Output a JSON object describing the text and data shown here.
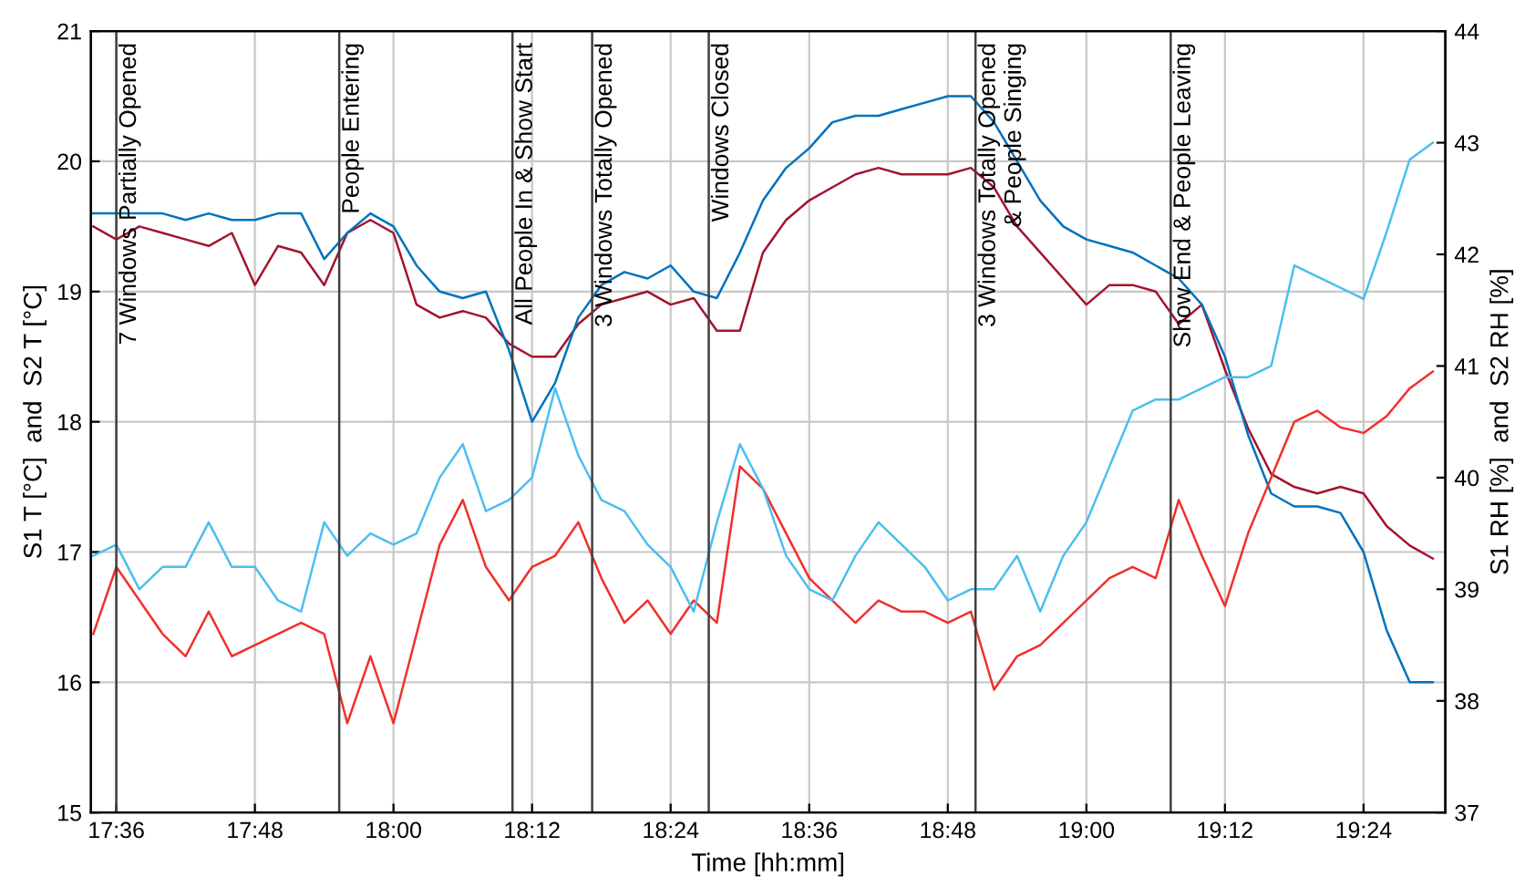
{
  "chart_data": {
    "type": "line",
    "xlabel": "Time [hh:mm]",
    "ylabel": "S1 T [°C]  and  S2 T [°C]",
    "y2label": "S1 RH [%]  and  S2 RH [%]",
    "x": [
      17.5667,
      17.6,
      17.6333,
      17.6667,
      17.7,
      17.7333,
      17.7667,
      17.8,
      17.8333,
      17.8667,
      17.9,
      17.9333,
      17.9667,
      18.0,
      18.0333,
      18.0667,
      18.1,
      18.1333,
      18.1667,
      18.2,
      18.2333,
      18.2667,
      18.3,
      18.3333,
      18.3667,
      18.4,
      18.4333,
      18.4667,
      18.5,
      18.5333,
      18.5667,
      18.6,
      18.6333,
      18.6667,
      18.7,
      18.7333,
      18.7667,
      18.8,
      18.8333,
      18.8667,
      18.9,
      18.9333,
      18.9667,
      19.0,
      19.0333,
      19.0667,
      19.1,
      19.1333,
      19.1667,
      19.2,
      19.2333,
      19.2667,
      19.3,
      19.3333,
      19.3667,
      19.4,
      19.4333,
      19.4667,
      19.5
    ],
    "series": [
      {
        "color": "#a2142f",
        "values": [
          19.5,
          19.4,
          19.5,
          19.45,
          19.4,
          19.35,
          19.45,
          19.05,
          19.35,
          19.3,
          19.05,
          19.45,
          19.55,
          19.45,
          18.9,
          18.8,
          18.85,
          18.8,
          18.6,
          18.5,
          18.5,
          18.75,
          18.9,
          18.95,
          19.0,
          18.9,
          18.95,
          18.7,
          18.7,
          19.3,
          19.55,
          19.7,
          19.8,
          19.9,
          19.95,
          19.9,
          19.9,
          19.9,
          19.95,
          19.8,
          19.5,
          19.3,
          19.1,
          18.9,
          19.05,
          19.05,
          19.0,
          18.75,
          18.9,
          18.4,
          17.95,
          17.6,
          17.5,
          17.45,
          17.5,
          17.45,
          17.2,
          17.05,
          16.95
        ]
      },
      {
        "color": "#0072bd",
        "values": [
          19.6,
          19.6,
          19.6,
          19.6,
          19.55,
          19.6,
          19.55,
          19.55,
          19.6,
          19.6,
          19.25,
          19.45,
          19.6,
          19.5,
          19.2,
          19.0,
          18.95,
          19.0,
          18.55,
          18.0,
          18.3,
          18.8,
          19.05,
          19.15,
          19.1,
          19.2,
          19.0,
          18.95,
          19.3,
          19.7,
          19.95,
          20.1,
          20.3,
          20.35,
          20.35,
          20.4,
          20.45,
          20.5,
          20.5,
          20.3,
          20.0,
          19.7,
          19.5,
          19.4,
          19.35,
          19.3,
          19.2,
          19.1,
          18.9,
          18.5,
          17.9,
          17.45,
          17.35,
          17.35,
          17.3,
          17.0,
          16.4,
          16.0,
          16.0
        ]
      },
      {
        "color": "#f0302a",
        "axis": "y2",
        "values": [
          38.6,
          39.2,
          38.9,
          38.6,
          38.4,
          38.8,
          38.4,
          38.5,
          38.6,
          38.7,
          38.6,
          37.8,
          38.4,
          37.8,
          38.6,
          39.4,
          39.8,
          39.2,
          38.9,
          39.2,
          39.3,
          39.6,
          39.1,
          38.7,
          38.9,
          38.6,
          38.9,
          38.7,
          40.1,
          39.9,
          39.5,
          39.1,
          38.9,
          38.7,
          38.9,
          38.8,
          38.8,
          38.7,
          38.8,
          38.1,
          38.4,
          38.5,
          38.7,
          38.9,
          39.1,
          39.2,
          39.1,
          39.8,
          39.3,
          38.85,
          39.5,
          40.0,
          40.5,
          40.6,
          40.45,
          40.4,
          40.55,
          40.8,
          40.95
        ]
      },
      {
        "color": "#4dbeee",
        "axis": "y2",
        "values": [
          39.3,
          39.4,
          39.0,
          39.2,
          39.2,
          39.6,
          39.2,
          39.2,
          38.9,
          38.8,
          39.6,
          39.3,
          39.5,
          39.4,
          39.5,
          40.0,
          40.3,
          39.7,
          39.8,
          40.0,
          40.8,
          40.2,
          39.8,
          39.7,
          39.4,
          39.2,
          38.8,
          39.6,
          40.3,
          39.9,
          39.3,
          39.0,
          38.9,
          39.3,
          39.6,
          39.4,
          39.2,
          38.9,
          39.0,
          39.0,
          39.3,
          38.8,
          39.3,
          39.6,
          40.1,
          40.6,
          40.7,
          40.7,
          40.8,
          40.9,
          40.9,
          41.0,
          41.9,
          41.8,
          41.7,
          41.6,
          42.2,
          42.85,
          43.0
        ]
      }
    ],
    "xlim": [
      17.5633,
      19.518
    ],
    "xticks": [
      {
        "value": 17.6,
        "label": "17:36"
      },
      {
        "value": 17.8,
        "label": "17:48"
      },
      {
        "value": 18.0,
        "label": "18:00"
      },
      {
        "value": 18.2,
        "label": "18:12"
      },
      {
        "value": 18.4,
        "label": "18:24"
      },
      {
        "value": 18.6,
        "label": "18:36"
      },
      {
        "value": 18.8,
        "label": "18:48"
      },
      {
        "value": 19.0,
        "label": "19:00"
      },
      {
        "value": 19.2,
        "label": "19:12"
      },
      {
        "value": 19.4,
        "label": "19:24"
      }
    ],
    "ylim": [
      15,
      21
    ],
    "yticks": [
      15,
      16,
      17,
      18,
      19,
      20,
      21
    ],
    "y2lim": [
      37,
      44
    ],
    "y2ticks": [
      37,
      38,
      39,
      40,
      41,
      42,
      43,
      44
    ],
    "grid": true,
    "line_style": "solid",
    "marker": "none",
    "ref_lines": [
      {
        "axis": "x",
        "value": 17.6,
        "label": "7 Windows Partially Opened",
        "color": "#404040"
      },
      {
        "axis": "x",
        "value": 17.9217,
        "label": "People Entering",
        "color": "#404040"
      },
      {
        "axis": "x",
        "value": 18.1717,
        "label": "All People In & Show Start",
        "color": "#404040"
      },
      {
        "axis": "x",
        "value": 18.2867,
        "label": "3 Windows Totally Opened",
        "color": "#404040"
      },
      {
        "axis": "x",
        "value": 18.455,
        "label": "Windows Closed",
        "color": "#404040"
      },
      {
        "axis": "x",
        "value": 18.84,
        "label": "3 Windows Totally Opened\n& People Singing",
        "color": "#404040"
      },
      {
        "axis": "x",
        "value": 19.1217,
        "label": "Show End & People Leaving",
        "color": "#404040"
      }
    ]
  }
}
